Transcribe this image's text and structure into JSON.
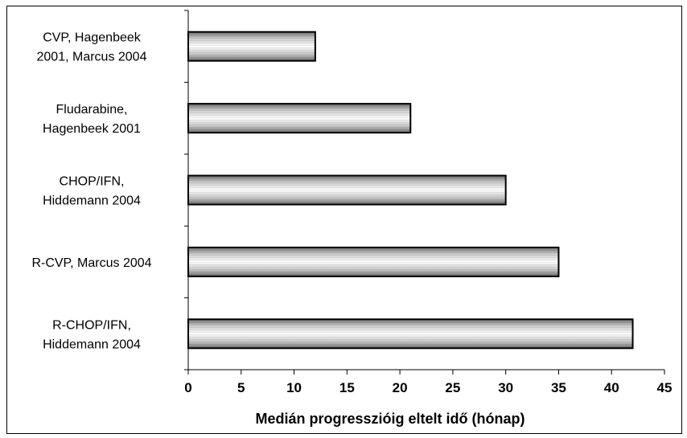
{
  "chart_data": {
    "type": "bar",
    "orientation": "horizontal",
    "title": "",
    "xlabel": "Medián progresszióig eltelt idő (hónap)",
    "ylabel": "",
    "categories": [
      [
        "CVP, Hagenbeek",
        "2001, Marcus 2004"
      ],
      [
        "Fludarabine,",
        "Hagenbeek 2001"
      ],
      [
        "CHOP/IFN,",
        "Hiddemann 2004"
      ],
      [
        "R-CVP,  Marcus 2004"
      ],
      [
        "R-CHOP/IFN,",
        "Hiddemann 2004"
      ]
    ],
    "values": [
      12,
      21,
      30,
      35,
      42
    ],
    "xlim": [
      0,
      45
    ],
    "xticks": [
      "0",
      "5",
      "10",
      "15",
      "20",
      "25",
      "30",
      "35",
      "40",
      "45"
    ],
    "grid": false,
    "legend": "none",
    "bar_fill": "horizontal gray gradient"
  }
}
